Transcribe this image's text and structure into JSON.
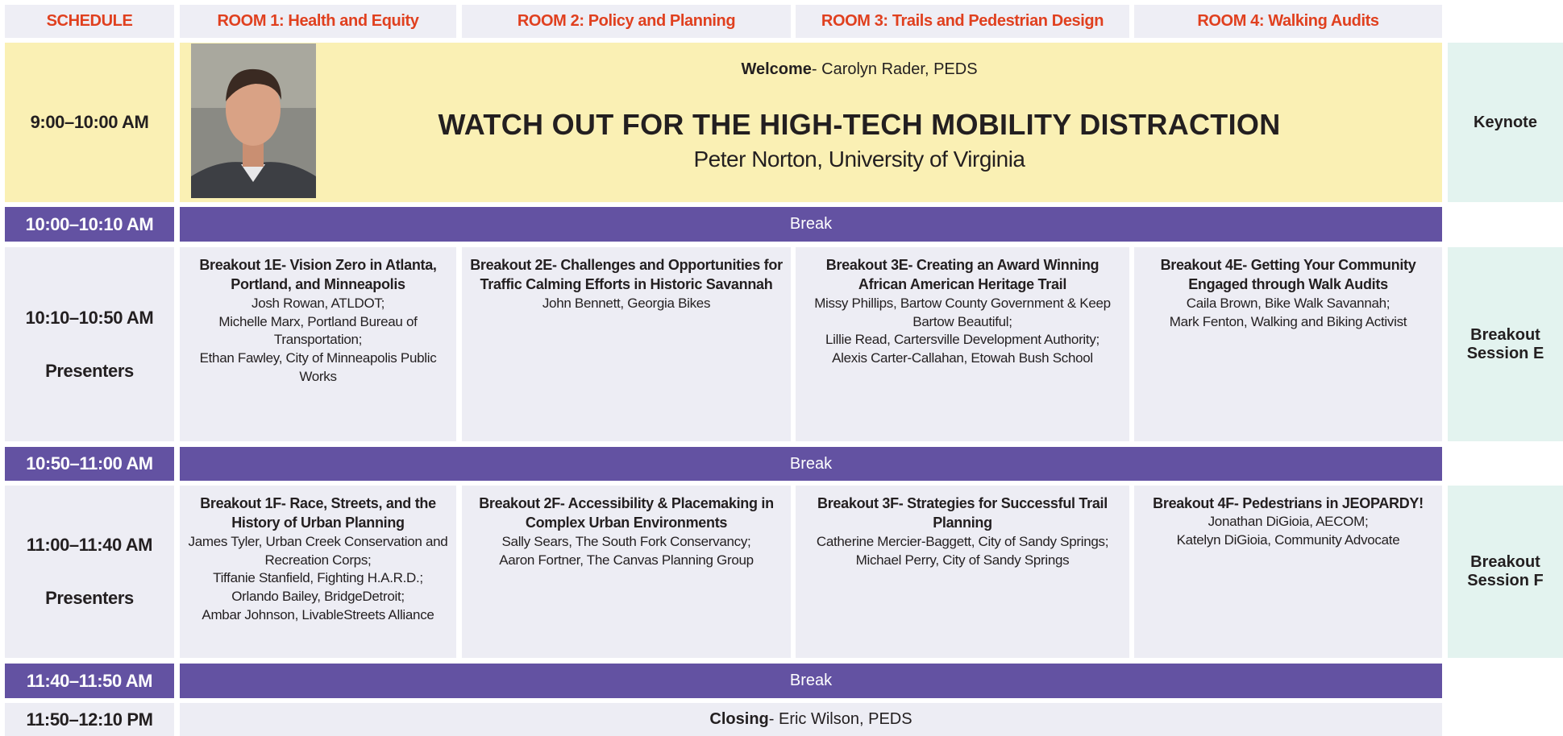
{
  "header": [
    "SCHEDULE",
    "ROOM 1: Health and Equity",
    "ROOM 2: Policy and Planning",
    "ROOM 3: Trails and Pedestrian Design",
    "ROOM 4: Walking Audits"
  ],
  "keynote": {
    "time": "9:00–10:00 AM",
    "welcome_label": "Welcome",
    "welcome_text": "- Carolyn Rader, PEDS",
    "title": "WATCH OUT FOR THE HIGH-TECH MOBILITY DISTRACTION",
    "speaker": "Peter Norton, University of Virginia",
    "side": "Keynote"
  },
  "breaks": [
    {
      "time": "10:00–10:10 AM",
      "label": "Break"
    },
    {
      "time": "10:50–11:00 AM",
      "label": "Break"
    },
    {
      "time": "11:40–11:50 AM",
      "label": "Break"
    }
  ],
  "sessions": [
    {
      "time": "10:10–10:50 AM",
      "role": "Presenters",
      "side": "Breakout Session E",
      "talks": [
        {
          "title": "Breakout 1E- Vision Zero in Atlanta, Portland, and Minneapolis",
          "presenters": [
            "Josh Rowan, ATLDOT;",
            "Michelle Marx, Portland Bureau of Transportation;",
            "Ethan Fawley, City of Minneapolis Public Works"
          ]
        },
        {
          "title": "Breakout 2E- Challenges and Opportunities for Traffic Calming Efforts in Historic Savannah",
          "presenters": [
            "John Bennett, Georgia Bikes"
          ]
        },
        {
          "title": "Breakout 3E- Creating an Award Winning African American Heritage Trail",
          "presenters": [
            "Missy Phillips, Bartow County Government & Keep Bartow Beautiful;",
            "Lillie Read, Cartersville Development Authority;",
            "Alexis Carter-Callahan, Etowah Bush School"
          ]
        },
        {
          "title": "Breakout 4E- Getting Your Community Engaged through Walk Audits",
          "presenters": [
            "Caila Brown, Bike Walk Savannah;",
            "Mark Fenton, Walking and Biking Activist"
          ]
        }
      ]
    },
    {
      "time": "11:00–11:40 AM",
      "role": "Presenters",
      "side": "Breakout Session F",
      "talks": [
        {
          "title": "Breakout 1F- Race, Streets, and the History of Urban Planning",
          "presenters": [
            "James Tyler, Urban Creek Conservation and Recreation Corps;",
            "Tiffanie Stanfield, Fighting H.A.R.D.;",
            "Orlando Bailey, BridgeDetroit;",
            "Ambar Johnson, LivableStreets Alliance"
          ]
        },
        {
          "title": "Breakout 2F- Accessibility & Placemaking in Complex Urban Environments",
          "presenters": [
            "Sally Sears, The South Fork Conservancy;",
            "Aaron Fortner, The Canvas Planning Group"
          ]
        },
        {
          "title": "Breakout 3F- Strategies for Successful Trail Planning",
          "presenters": [
            "Catherine Mercier-Baggett, City of Sandy Springs;",
            "Michael Perry, City of Sandy Springs"
          ]
        },
        {
          "title": "Breakout 4F- Pedestrians in JEOPARDY!",
          "presenters": [
            "Jonathan DiGioia, AECOM;",
            "Katelyn DiGioia, Community Advocate"
          ]
        }
      ]
    }
  ],
  "closing": {
    "time": "11:50–12:10 PM",
    "label": "Closing",
    "text": "- Eric Wilson, PEDS"
  }
}
